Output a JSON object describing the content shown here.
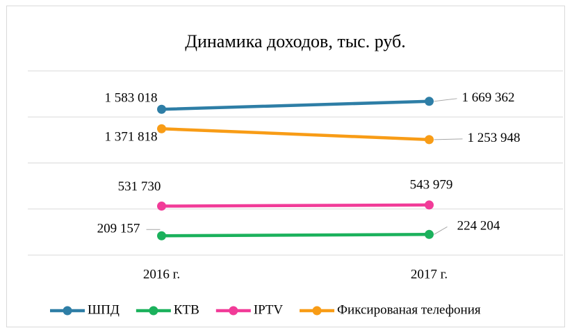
{
  "chart_data": {
    "type": "line",
    "title": "Динамика доходов, тыс. руб.",
    "categories": [
      "2016 г.",
      "2017 г."
    ],
    "series": [
      {
        "name": "ШПД",
        "color": "#2e7ea6",
        "values": [
          1583018,
          1669362
        ],
        "value_labels": [
          "1 583 018",
          "1 669 362"
        ]
      },
      {
        "name": "КТВ",
        "color": "#1bb15c",
        "values": [
          209157,
          224204
        ],
        "value_labels": [
          "209 157",
          "224 204"
        ]
      },
      {
        "name": "IPTV",
        "color": "#f13b98",
        "values": [
          531730,
          543979
        ],
        "value_labels": [
          "531 730",
          "543 979"
        ]
      },
      {
        "name": "Фиксированая телефония",
        "color": "#f89c16",
        "values": [
          1371818,
          1253948
        ],
        "value_labels": [
          "1 371 818",
          "1 253 948"
        ]
      }
    ],
    "ylim": [
      0,
      2000000
    ],
    "yticks": [
      0,
      500000,
      1000000,
      1500000,
      2000000
    ],
    "grid": true,
    "legend": "bottom"
  }
}
